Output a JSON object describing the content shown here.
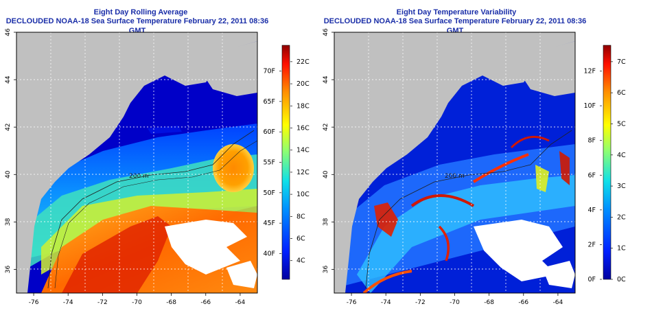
{
  "left_panel": {
    "title": "Eight Day Rolling Average",
    "subtitle": "DECLOUDED NOAA-18 Sea Surface Temperature February 22, 2011 08:36 GMT",
    "colorbar_celsius": [
      "4C",
      "6C",
      "8C",
      "10C",
      "12C",
      "14C",
      "16C",
      "18C",
      "20C",
      "22C"
    ],
    "colorbar_fahrenheit": [
      "40F",
      "45F",
      "50F",
      "55F",
      "60F",
      "65F",
      "70F"
    ],
    "contour_label": "200 m"
  },
  "right_panel": {
    "title": "Eight Day Temperature Variability",
    "subtitle": "DECLOUDED NOAA-18 Sea Surface Temperature February 22, 2011 08:36 GMT",
    "colorbar_celsius": [
      "0C",
      "1C",
      "2C",
      "3C",
      "4C",
      "5C",
      "6C",
      "7C"
    ],
    "colorbar_fahrenheit": [
      "0F",
      "2F",
      "4F",
      "6F",
      "8F",
      "10F",
      "12F"
    ],
    "contour_label": "200 m"
  },
  "axes": {
    "x_ticks": [
      "-76",
      "-74",
      "-72",
      "-70",
      "-68",
      "-66",
      "-64"
    ],
    "y_ticks": [
      "36",
      "38",
      "40",
      "42",
      "44",
      "46"
    ],
    "lon_range": [
      -77,
      -63
    ],
    "lat_range": [
      35,
      46
    ]
  },
  "colors": {
    "land": "#c0c0c0",
    "cloud": "#ffffff",
    "title_text": "#1a2ea8"
  }
}
